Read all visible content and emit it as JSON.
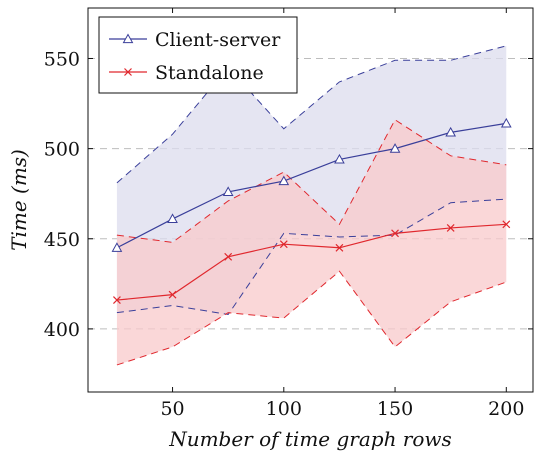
{
  "chart_data": {
    "type": "line",
    "xlabel": "Number of time graph rows",
    "ylabel": "Time (ms)",
    "ylabel_main": "Time",
    "ylabel_unit": "(ms)",
    "xlim": [
      12,
      212
    ],
    "ylim": [
      365,
      578
    ],
    "x_ticks": [
      50,
      100,
      150,
      200
    ],
    "y_ticks": [
      400,
      450,
      500,
      550
    ],
    "grid": "horizontal dashed",
    "legend_position": "top-left",
    "x": [
      25,
      50,
      75,
      100,
      125,
      150,
      175,
      200
    ],
    "series": [
      {
        "name": "Client-server",
        "color": "#3a3f9a",
        "fill": "#dcdcee",
        "marker": "triangle",
        "values": [
          445,
          461,
          476,
          482,
          494,
          500,
          509,
          514
        ],
        "upper": [
          481,
          508,
          545,
          511,
          537,
          549,
          549,
          557
        ],
        "lower": [
          409,
          413,
          408,
          453,
          451,
          452,
          470,
          472
        ]
      },
      {
        "name": "Standalone",
        "color": "#e0282e",
        "fill": "#f8c9cb",
        "marker": "x",
        "values": [
          416,
          419,
          440,
          447,
          445,
          453,
          456,
          458
        ],
        "upper": [
          452,
          448,
          471,
          487,
          458,
          516,
          496,
          491
        ],
        "lower": [
          380,
          390,
          409,
          406,
          432,
          390,
          415,
          426
        ]
      }
    ]
  }
}
